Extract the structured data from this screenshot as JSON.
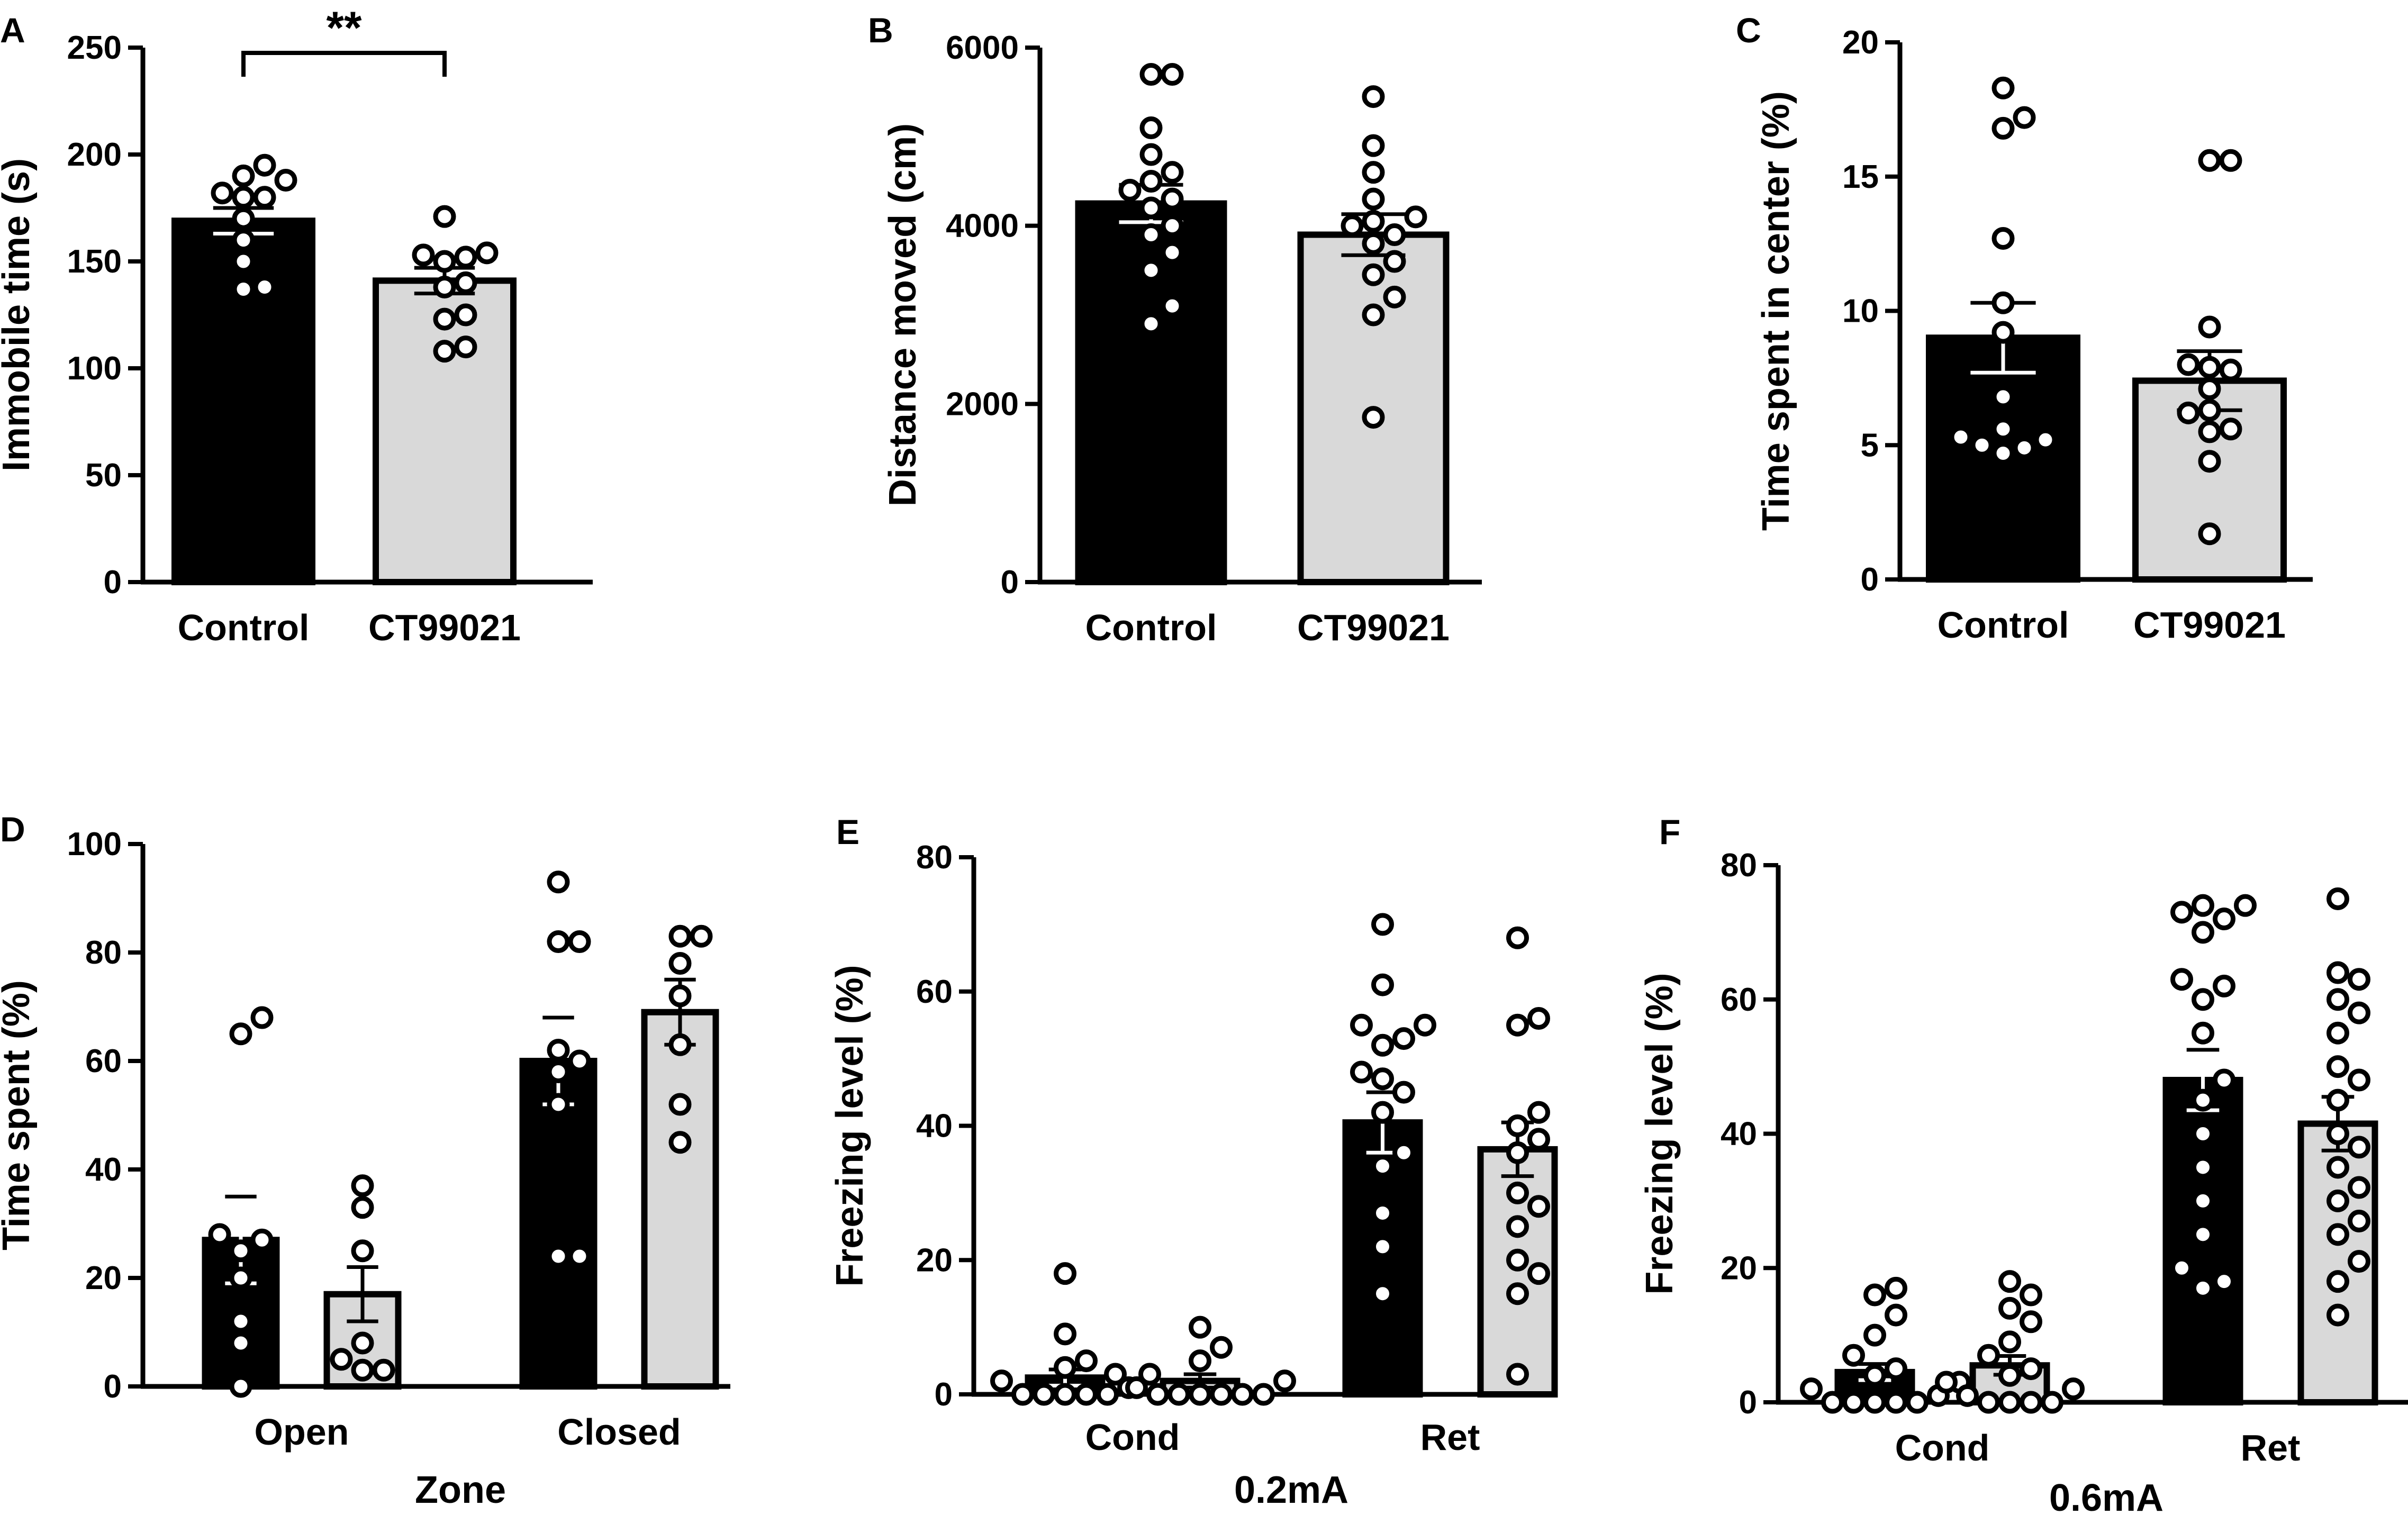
{
  "figure": {
    "colors": {
      "control": "#000000",
      "treated": "#d9d9d9",
      "stroke": "#000000",
      "point_fill": "#ffffff"
    }
  },
  "chart_data": [
    {
      "id": "A",
      "panel_label": "A",
      "type": "bar",
      "categories": [
        "Control",
        "CT99021"
      ],
      "ylabel": "Immobile time (s)",
      "xlabel": "",
      "ylim": [
        0,
        250
      ],
      "yticks": [
        0,
        50,
        100,
        150,
        200,
        250
      ],
      "groups": [
        {
          "category": "Control",
          "bars": [
            {
              "series": "Control",
              "mean": 169,
              "sem": 6,
              "points": [
                195,
                190,
                188,
                182,
                180,
                180,
                170,
                160,
                150,
                138,
                137
              ]
            }
          ]
        },
        {
          "category": "CT99021",
          "bars": [
            {
              "series": "CT99021",
              "mean": 141,
              "sem": 6,
              "points": [
                171,
                154,
                153,
                152,
                150,
                140,
                138,
                125,
                123,
                110,
                108
              ]
            }
          ]
        }
      ],
      "significance": {
        "label": "**",
        "between": [
          "Control",
          "CT99021"
        ]
      }
    },
    {
      "id": "B",
      "panel_label": "B",
      "type": "bar",
      "categories": [
        "Control",
        "CT99021"
      ],
      "ylabel": "Distance moved (cm)",
      "xlabel": "",
      "ylim": [
        0,
        6000
      ],
      "yticks": [
        0,
        2000,
        4000,
        6000
      ],
      "groups": [
        {
          "category": "Control",
          "bars": [
            {
              "series": "Control",
              "mean": 4250,
              "sem": 210,
              "points": [
                5700,
                5700,
                5100,
                4800,
                4600,
                4500,
                4400,
                4300,
                4200,
                4000,
                3900,
                3700,
                3500,
                3100,
                2900
              ]
            }
          ]
        },
        {
          "category": "CT99021",
          "bars": [
            {
              "series": "CT99021",
              "mean": 3900,
              "sem": 230,
              "points": [
                5450,
                4900,
                4600,
                4300,
                4100,
                4050,
                4000,
                3900,
                3800,
                3600,
                3450,
                3200,
                3000,
                1850
              ]
            }
          ]
        }
      ]
    },
    {
      "id": "C",
      "panel_label": "C",
      "type": "bar",
      "categories": [
        "Control",
        "CT99021"
      ],
      "ylabel": "Time spent in center (%)",
      "xlabel": "",
      "ylim": [
        0,
        20
      ],
      "yticks": [
        0,
        5,
        10,
        15,
        20
      ],
      "groups": [
        {
          "category": "Control",
          "bars": [
            {
              "series": "Control",
              "mean": 9.0,
              "sem": 1.3,
              "points": [
                18.3,
                17.2,
                16.8,
                12.7,
                10.3,
                9.2,
                6.8,
                5.6,
                5.3,
                5.2,
                5.0,
                4.9,
                4.7
              ]
            }
          ]
        },
        {
          "category": "CT99021",
          "bars": [
            {
              "series": "CT99021",
              "mean": 7.4,
              "sem": 1.1,
              "points": [
                15.6,
                15.6,
                9.4,
                8.0,
                7.9,
                7.8,
                7.1,
                6.3,
                6.2,
                5.6,
                5.5,
                4.4,
                1.7
              ]
            }
          ]
        }
      ]
    },
    {
      "id": "D",
      "panel_label": "D",
      "type": "bar",
      "categories": [
        "Open",
        "Closed"
      ],
      "ylabel": "Time spent (%)",
      "xlabel": "Zone",
      "ylim": [
        0,
        100
      ],
      "yticks": [
        0,
        20,
        40,
        60,
        80,
        100
      ],
      "groups": [
        {
          "category": "Open",
          "bars": [
            {
              "series": "Control",
              "mean": 27,
              "sem": 8,
              "points": [
                68,
                65,
                28,
                27,
                25,
                20,
                12,
                8,
                0
              ]
            },
            {
              "series": "CT99021",
              "mean": 17,
              "sem": 5,
              "points": [
                37,
                33,
                25,
                8,
                5,
                3,
                3
              ]
            }
          ]
        },
        {
          "category": "Closed",
          "bars": [
            {
              "series": "Control",
              "mean": 60,
              "sem": 8,
              "points": [
                93,
                82,
                82,
                62,
                60,
                58,
                52,
                24,
                24
              ]
            },
            {
              "series": "CT99021",
              "mean": 69,
              "sem": 6,
              "points": [
                83,
                83,
                78,
                72,
                63,
                52,
                45
              ]
            }
          ]
        }
      ]
    },
    {
      "id": "E",
      "panel_label": "E",
      "type": "bar",
      "categories": [
        "Cond",
        "Ret"
      ],
      "ylabel": "Freezing level (%)",
      "xlabel": "0.2mA",
      "ylim": [
        0,
        80
      ],
      "yticks": [
        0,
        20,
        40,
        60,
        80
      ],
      "groups": [
        {
          "category": "Cond",
          "bars": [
            {
              "series": "Control",
              "mean": 2.5,
              "sem": 1.2,
              "points": [
                18,
                9,
                5,
                4,
                3,
                2,
                1,
                0,
                0,
                0,
                0,
                0
              ]
            },
            {
              "series": "CT99021",
              "mean": 2,
              "sem": 1,
              "points": [
                10,
                7,
                5,
                3,
                2,
                1,
                0,
                0,
                0,
                0,
                0,
                0
              ]
            }
          ]
        },
        {
          "category": "Ret",
          "bars": [
            {
              "series": "Control",
              "mean": 40.5,
              "sem": 4.5,
              "points": [
                70,
                61,
                55,
                55,
                53,
                52,
                48,
                47,
                45,
                42,
                36,
                34,
                27,
                22,
                15
              ]
            },
            {
              "series": "CT99021",
              "mean": 36.5,
              "sem": 4,
              "points": [
                68,
                56,
                55,
                42,
                40,
                38,
                36,
                30,
                28,
                25,
                20,
                18,
                15,
                3
              ]
            }
          ]
        }
      ]
    },
    {
      "id": "F",
      "panel_label": "F",
      "type": "bar",
      "categories": [
        "Cond",
        "Ret"
      ],
      "ylabel": "Freezing level (%)",
      "xlabel": "0.6mA",
      "ylim": [
        0,
        80
      ],
      "yticks": [
        0,
        20,
        40,
        60,
        80
      ],
      "groups": [
        {
          "category": "Cond",
          "bars": [
            {
              "series": "Control",
              "mean": 4.5,
              "sem": 1.2,
              "points": [
                17,
                16,
                13,
                10,
                7,
                5,
                4,
                3,
                2,
                1,
                0,
                0,
                0,
                0,
                0
              ]
            },
            {
              "series": "CT99021",
              "mean": 5.5,
              "sem": 1.4,
              "points": [
                18,
                16,
                14,
                12,
                9,
                7,
                5,
                4,
                3,
                2,
                1,
                0,
                0,
                0,
                0
              ]
            }
          ]
        },
        {
          "category": "Ret",
          "bars": [
            {
              "series": "Control",
              "mean": 48,
              "sem": 4.5,
              "points": [
                74,
                74,
                73,
                72,
                70,
                63,
                62,
                60,
                55,
                48,
                45,
                40,
                35,
                30,
                25,
                20,
                18,
                17
              ]
            },
            {
              "series": "CT99021",
              "mean": 41.5,
              "sem": 4,
              "points": [
                75,
                64,
                63,
                60,
                58,
                55,
                50,
                48,
                45,
                40,
                38,
                35,
                32,
                30,
                27,
                25,
                21,
                18,
                13
              ]
            }
          ]
        }
      ]
    }
  ]
}
